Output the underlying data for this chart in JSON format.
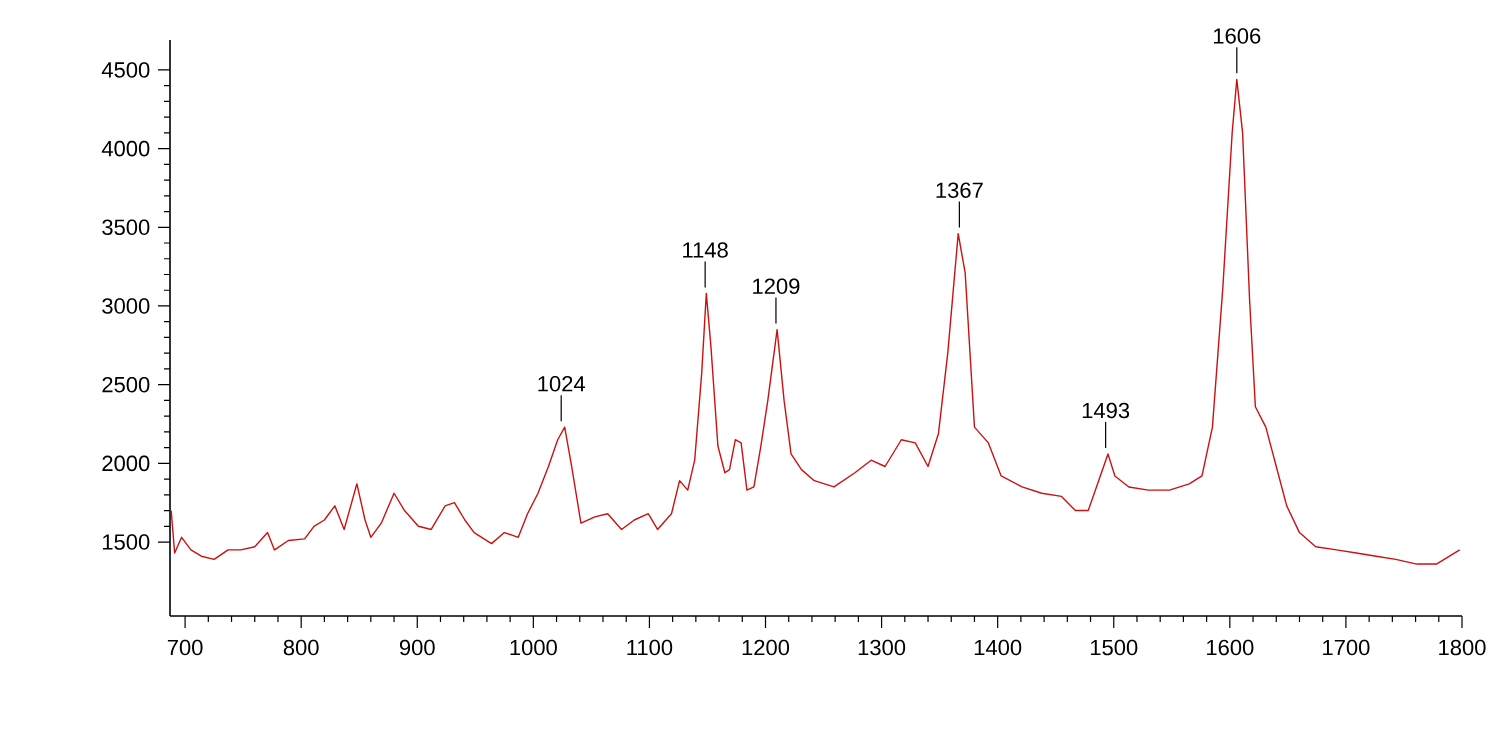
{
  "chart_data": {
    "type": "line",
    "color": "#cc1111",
    "xlim": [
      687,
      1800
    ],
    "ylim": [
      1030,
      4690
    ],
    "xticks": [
      700,
      800,
      900,
      1000,
      1100,
      1200,
      1300,
      1400,
      1500,
      1600,
      1700,
      1800
    ],
    "yticks": [
      1500,
      2000,
      2500,
      3000,
      3500,
      4000,
      4500
    ],
    "grid": false,
    "marker": "none",
    "line_style": "solid",
    "x": [
      688,
      691,
      697,
      705,
      714,
      725,
      737,
      748,
      760,
      771,
      777,
      789,
      803,
      811,
      820,
      829,
      837,
      848,
      855,
      860,
      869,
      880,
      889,
      901,
      912,
      924,
      932,
      941,
      949,
      964,
      975,
      987,
      995,
      1004,
      1013,
      1021,
      1027,
      1033,
      1041,
      1053,
      1064,
      1076,
      1087,
      1099,
      1107,
      1119,
      1126,
      1133,
      1139,
      1145,
      1149,
      1153,
      1159,
      1165,
      1169,
      1174,
      1179,
      1184,
      1190,
      1196,
      1202,
      1210,
      1216,
      1222,
      1231,
      1242,
      1259,
      1277,
      1291,
      1303,
      1317,
      1329,
      1340,
      1349,
      1357,
      1366,
      1372,
      1380,
      1392,
      1403,
      1421,
      1438,
      1455,
      1467,
      1478,
      1487,
      1495,
      1501,
      1513,
      1530,
      1548,
      1565,
      1576,
      1585,
      1594,
      1602,
      1606,
      1611,
      1617,
      1622,
      1631,
      1640,
      1649,
      1660,
      1674,
      1692,
      1709,
      1726,
      1743,
      1761,
      1778,
      1798
    ],
    "values": [
      1700,
      1430,
      1530,
      1450,
      1410,
      1390,
      1450,
      1450,
      1470,
      1560,
      1450,
      1510,
      1520,
      1600,
      1640,
      1730,
      1580,
      1870,
      1640,
      1530,
      1620,
      1810,
      1700,
      1600,
      1580,
      1730,
      1750,
      1640,
      1560,
      1490,
      1560,
      1530,
      1680,
      1810,
      1980,
      2150,
      2230,
      1980,
      1620,
      1660,
      1680,
      1580,
      1640,
      1680,
      1580,
      1680,
      1890,
      1830,
      2020,
      2570,
      3080,
      2740,
      2110,
      1940,
      1960,
      2150,
      2130,
      1830,
      1850,
      2110,
      2400,
      2850,
      2400,
      2060,
      1960,
      1890,
      1850,
      1940,
      2020,
      1980,
      2150,
      2130,
      1980,
      2190,
      2700,
      3460,
      3210,
      2230,
      2130,
      1920,
      1850,
      1810,
      1790,
      1700,
      1700,
      1890,
      2060,
      1920,
      1850,
      1830,
      1830,
      1870,
      1920,
      2230,
      3120,
      4100,
      4440,
      4100,
      3040,
      2360,
      2230,
      1980,
      1730,
      1560,
      1470,
      1450,
      1430,
      1410,
      1390,
      1360,
      1360,
      1450
    ],
    "annotations": [
      {
        "text": "1024",
        "x": 1024,
        "y": 2230
      },
      {
        "text": "1148",
        "x": 1148,
        "y": 3080
      },
      {
        "text": "1209",
        "x": 1209,
        "y": 2850
      },
      {
        "text": "1367",
        "x": 1367,
        "y": 3460
      },
      {
        "text": "1493",
        "x": 1493,
        "y": 2060
      },
      {
        "text": "1606",
        "x": 1606,
        "y": 4440
      }
    ]
  }
}
